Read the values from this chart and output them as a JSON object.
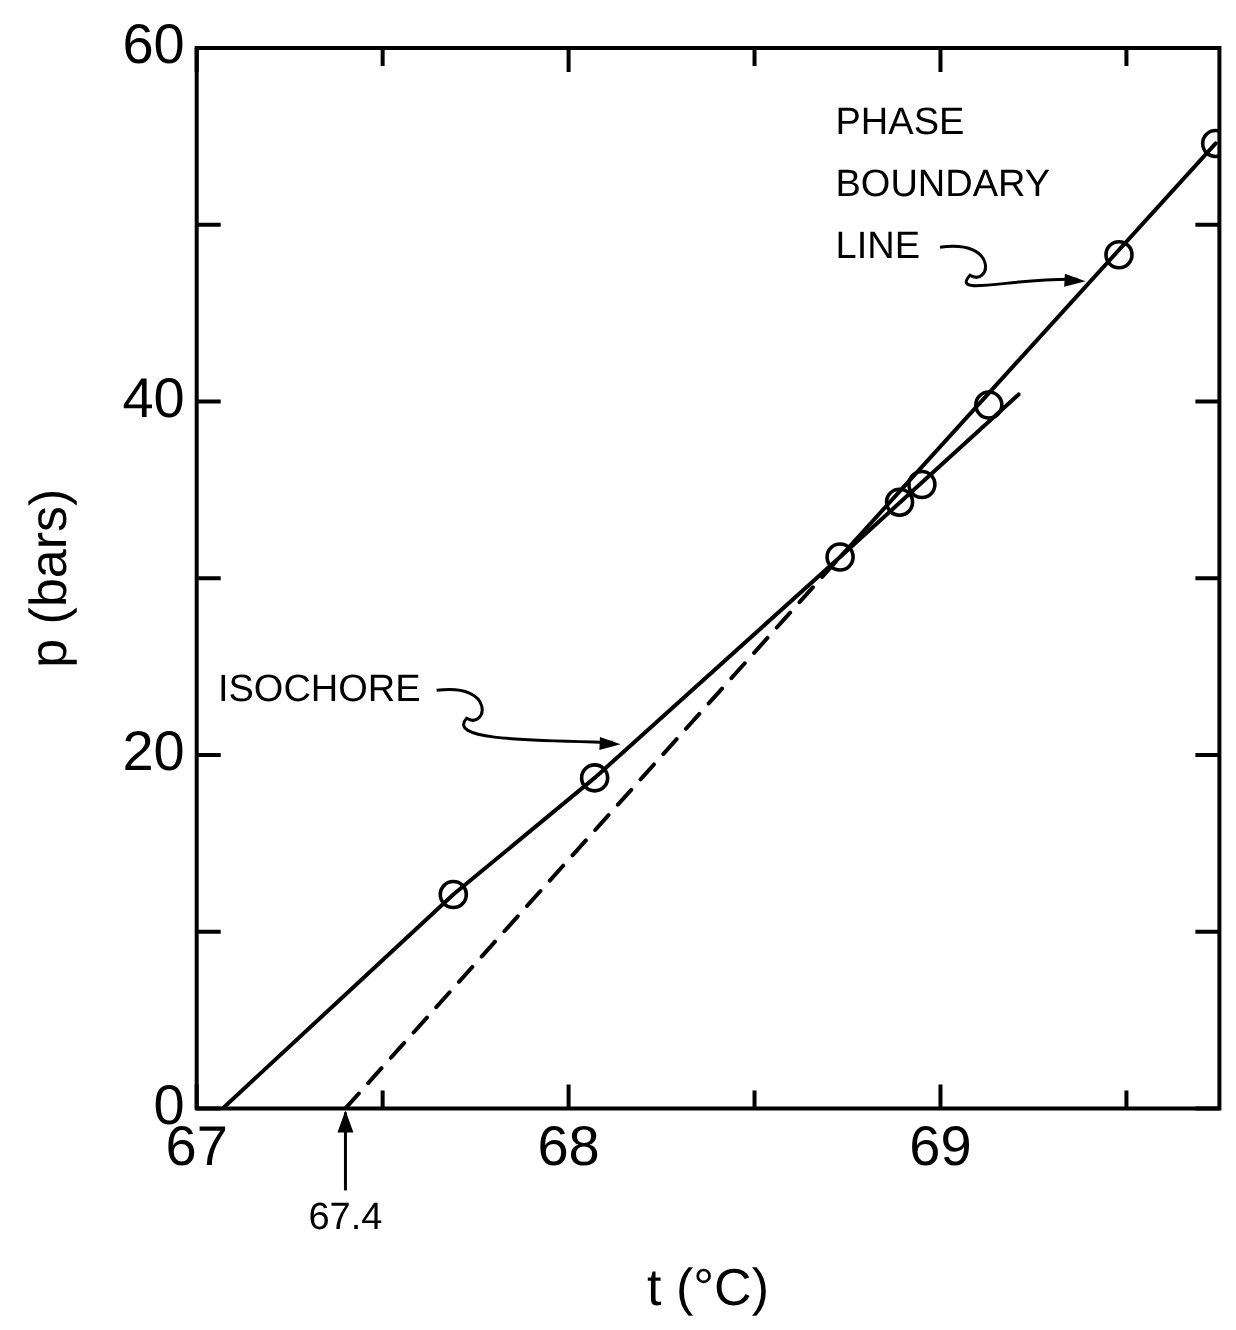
{
  "chart_data": {
    "type": "line",
    "xlabel": "t (°C)",
    "ylabel": "p (bars)",
    "xlim": [
      67,
      69.75
    ],
    "ylim": [
      0,
      60
    ],
    "xticks": [
      67,
      {
        "value": 67.5,
        "label": null
      },
      68,
      {
        "value": 68.5,
        "label": null
      },
      69,
      {
        "value": 69.5,
        "label": null
      }
    ],
    "yticks": [
      0,
      {
        "value": 10,
        "label": null
      },
      20,
      {
        "value": 30,
        "label": null
      },
      40,
      {
        "value": 50,
        "label": null
      },
      60
    ],
    "grid": false,
    "legend": false,
    "series": [
      {
        "type": "line",
        "color": "#000000",
        "line_style": "solid",
        "marker": "none",
        "x": [
          67.07,
          67.69,
          68.07,
          68.73,
          69.21
        ],
        "values": [
          0,
          12.1,
          18.7,
          31.2,
          40.4
        ]
      },
      {
        "type": "line",
        "color": "#000000",
        "line_style": "solid",
        "marker": "none",
        "x": [
          68.73,
          69.74
        ],
        "values": [
          31.2,
          54.6
        ]
      },
      {
        "type": "line",
        "color": "#000000",
        "line_style": "dashed",
        "marker": "none",
        "x": [
          67.4,
          68.73
        ],
        "values": [
          0,
          31.2
        ]
      },
      {
        "type": "scatter",
        "color": "#000000",
        "marker": "circle",
        "x": [
          67.69,
          68.07,
          68.73,
          68.89,
          68.95,
          69.13,
          69.48,
          69.74
        ],
        "values": [
          12.1,
          18.7,
          31.2,
          34.3,
          35.3,
          39.8,
          48.3,
          54.6
        ]
      }
    ],
    "annotations": [
      {
        "text": "ISOCHORE",
        "x": 68.14,
        "y": 20.6
      },
      {
        "text": "PHASE BOUNDARY LINE",
        "x": 69.39,
        "y": 46.8
      },
      {
        "text": "67.4",
        "x": 67.4,
        "y": 0
      }
    ]
  }
}
